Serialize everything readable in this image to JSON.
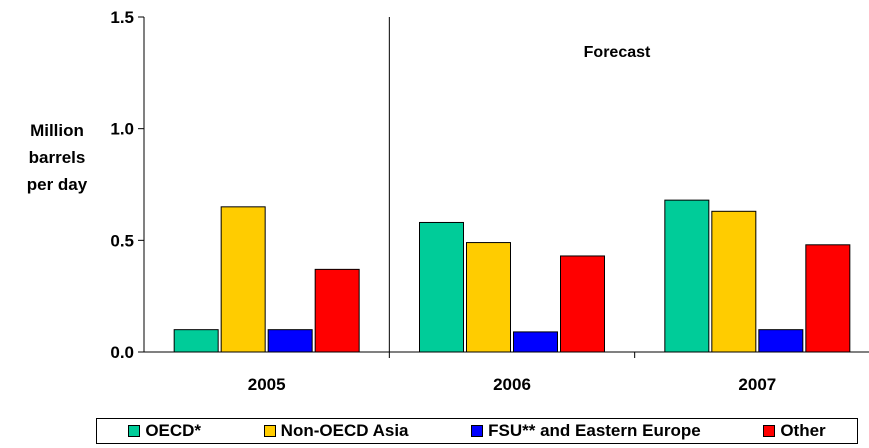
{
  "chart_data": {
    "type": "bar",
    "categories": [
      "2005",
      "2006",
      "2007"
    ],
    "series": [
      {
        "name": "OECD*",
        "color": "#00cc99",
        "values": [
          0.1,
          0.58,
          0.68
        ]
      },
      {
        "name": "Non-OECD Asia",
        "color": "#ffcc00",
        "values": [
          0.65,
          0.49,
          0.63
        ]
      },
      {
        "name": "FSU** and Eastern Europe",
        "color": "#0000ff",
        "values": [
          0.1,
          0.09,
          0.1
        ]
      },
      {
        "name": "Other",
        "color": "#ff0000",
        "values": [
          0.37,
          0.43,
          0.48
        ]
      }
    ],
    "ylabel_lines": [
      "Million",
      "barrels",
      "per day"
    ],
    "ylim": [
      0,
      1.5
    ],
    "yticks": [
      "0.0",
      "0.5",
      "1.0",
      "1.5"
    ],
    "annotation": "Forecast",
    "grid": false,
    "legend_position": "bottom"
  }
}
